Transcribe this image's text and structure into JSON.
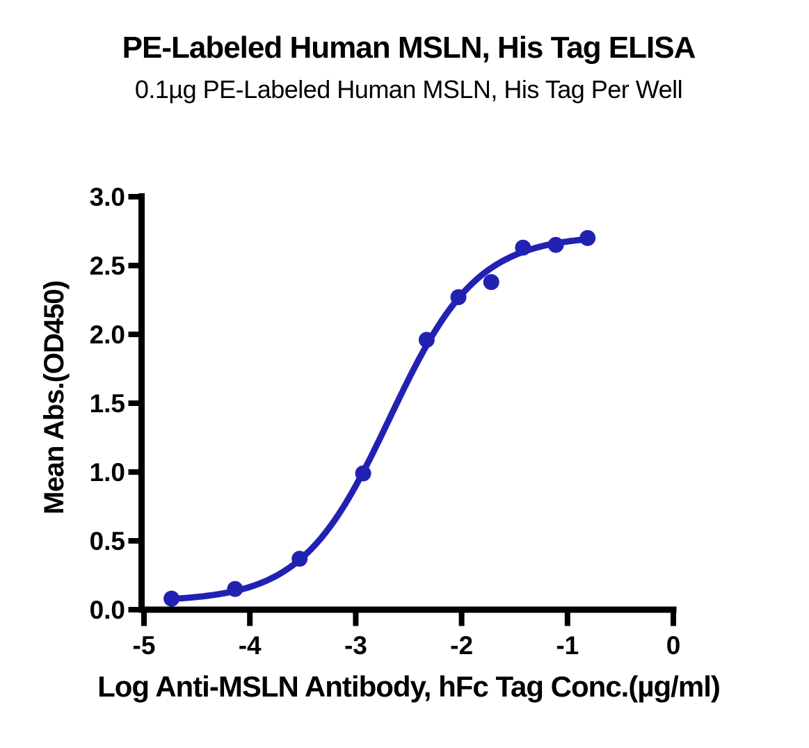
{
  "chart_data": {
    "type": "scatter",
    "title": "PE-Labeled Human MSLN, His Tag ELISA",
    "subtitle": "0.1µg PE-Labeled Human MSLN, His Tag Per Well",
    "xlabel": "Log Anti-MSLN Antibody, hFc Tag Conc.(µg/ml)",
    "ylabel": "Mean Abs.(OD450)",
    "x_range": [
      -5,
      0
    ],
    "y_range": [
      0,
      3
    ],
    "x_ticks": [
      -5,
      -4,
      -3,
      -2,
      -1,
      0
    ],
    "x_tick_labels": [
      "-5",
      "-4",
      "-3",
      "-2",
      "-1",
      "0"
    ],
    "y_ticks": [
      0,
      0.5,
      1,
      1.5,
      2,
      2.5,
      3
    ],
    "y_tick_labels": [
      "0.0",
      "0.5",
      "1.0",
      "1.5",
      "2.0",
      "2.5",
      "3.0"
    ],
    "grid": false,
    "legend": "none",
    "axis_color": "#000000",
    "text_color": "#000000",
    "series": [
      {
        "marker_color": "#2121B2",
        "line_color": "#2121B2",
        "x": [
          -4.74,
          -4.14,
          -3.53,
          -2.93,
          -2.33,
          -2.03,
          -1.72,
          -1.42,
          -1.11,
          -0.81
        ],
        "y": [
          0.08,
          0.15,
          0.37,
          0.99,
          1.96,
          2.27,
          2.38,
          2.63,
          2.65,
          2.7
        ]
      }
    ],
    "fit": {
      "model": "4PL",
      "bottom": 0.06,
      "top": 2.72,
      "log_ec50": -2.68,
      "hill": 1.05,
      "x_start": -4.74,
      "x_end": -0.81
    }
  }
}
